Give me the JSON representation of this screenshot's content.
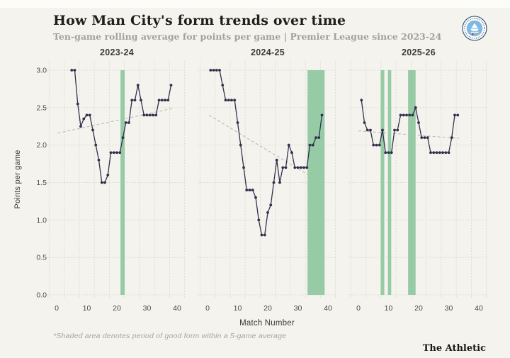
{
  "header": {
    "title": "How Man City's form trends over time",
    "subtitle": "Ten-game rolling average for points per game | Premier League since 2023-24",
    "badge_icon": "manchester-city-crest"
  },
  "chart_data": {
    "type": "line",
    "title": "How Man City's form trends over time",
    "subtitle": "Ten-game rolling average for points per game | Premier League since 2023-24",
    "x_axis_title": "Match Number",
    "y_axis_title": "Points per game",
    "x_ticks": [
      0,
      10,
      20,
      30,
      40
    ],
    "y_ticks": [
      0.0,
      0.5,
      1.0,
      1.5,
      2.0,
      2.5,
      3.0
    ],
    "xlim": [
      -3,
      43
    ],
    "ylim": [
      0.0,
      3.0
    ],
    "grid": "dotted",
    "legend": "none",
    "marker": "point",
    "panels": [
      {
        "season": "2023-24",
        "start_match": 5,
        "values": [
          3.0,
          3.0,
          2.55,
          2.25,
          2.35,
          2.4,
          2.4,
          2.2,
          2.0,
          1.8,
          1.5,
          1.5,
          1.6,
          1.9,
          1.9,
          1.9,
          1.9,
          2.1,
          2.3,
          2.3,
          2.6,
          2.6,
          2.8,
          2.6,
          2.4,
          2.4,
          2.4,
          2.4,
          2.4,
          2.6,
          2.6,
          2.6,
          2.6,
          2.8
        ],
        "good_form_bands": [
          [
            21.2,
            22.6
          ]
        ],
        "trend": {
          "x1": 0.4,
          "y1": 2.16,
          "x2": 38.6,
          "y2": 2.49
        }
      },
      {
        "season": "2024-25",
        "start_match": 1,
        "values": [
          3.0,
          3.0,
          3.0,
          3.0,
          2.8,
          2.6,
          2.6,
          2.6,
          2.6,
          2.3,
          2.0,
          1.7,
          1.4,
          1.4,
          1.4,
          1.3,
          1.0,
          0.8,
          0.8,
          1.1,
          1.2,
          1.5,
          1.8,
          1.5,
          1.7,
          1.7,
          2.0,
          1.9,
          1.7,
          1.7,
          1.7,
          1.7,
          1.7,
          2.0,
          2.0,
          2.1,
          2.1,
          2.4
        ],
        "good_form_bands": [
          [
            33.2,
            38.9
          ]
        ],
        "trend": {
          "x1": 0.5,
          "y1": 2.4,
          "x2": 38.5,
          "y2": 1.48
        }
      },
      {
        "season": "2025-26",
        "start_match": 1,
        "values": [
          2.6,
          2.3,
          2.2,
          2.2,
          2.0,
          2.0,
          2.0,
          2.2,
          1.9,
          1.9,
          1.9,
          2.2,
          2.2,
          2.4,
          2.4,
          2.4,
          2.4,
          2.4,
          2.5,
          2.3,
          2.1,
          2.1,
          2.1,
          1.9,
          1.9,
          1.9,
          1.9,
          1.9,
          1.9,
          1.9,
          2.1,
          2.4,
          2.4
        ],
        "good_form_bands": [
          [
            7.4,
            8.6
          ],
          [
            9.8,
            10.9
          ],
          [
            16.5,
            19.0
          ]
        ],
        "trend": {
          "x1": 0.0,
          "y1": 2.19,
          "x2": 33.5,
          "y2": 2.09
        }
      }
    ]
  },
  "footer": {
    "note": "*Shaded area denotes period of good form within a 5-game average",
    "brand": "The Athletic"
  },
  "colors": {
    "background": "#f5f3ee",
    "series_line": "#32304d",
    "good_form_band": "#96cba6",
    "trend_line": "#c0beb4",
    "gridline": "#d8d7cc",
    "title_text": "#211f1c",
    "subtitle_text": "#a3a198",
    "badge_light_blue": "#7fb8e2",
    "badge_navy": "#28476b",
    "badge_gold": "#d4a72c"
  }
}
